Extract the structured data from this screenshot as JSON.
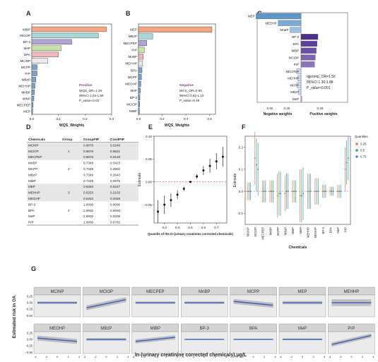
{
  "panel_labels": [
    "A",
    "B",
    "C",
    "D",
    "E",
    "F",
    "G"
  ],
  "chart_data": [
    {
      "panel": "A",
      "type": "bar",
      "orientation": "horizontal",
      "categories": [
        "MiBP",
        "MCiOP",
        "BP-3",
        "MeP",
        "BPA",
        "MCiNP",
        "MCPP",
        "PrP",
        "MBzP",
        "MEHHP",
        "MnBP",
        "MiNP",
        "MECPEP",
        "MEP"
      ],
      "values": [
        0.28,
        0.25,
        0.15,
        0.11,
        0.1,
        0.06,
        0.02,
        0.02,
        0.015,
        0.012,
        0.01,
        0.008,
        0.005,
        0.003
      ],
      "colors": [
        "#f4a582",
        "#a8d8d8",
        "#b2a3d6",
        "#c9e2a3",
        "#f2b8b8",
        "#e8e8e8",
        "#7aa0cc",
        "#7aa0cc",
        "#7aa0cc",
        "#7aa0cc",
        "#7aa0cc",
        "#7aa0cc",
        "#7aa0cc",
        "#7aa0cc"
      ],
      "xlim": [
        0,
        0.3
      ],
      "xticks": [
        "0.0",
        "0.1",
        "0.2",
        "0.3"
      ],
      "xlabel": "WQS_Weights",
      "annotation": {
        "title": "Positive",
        "lines": [
          "WQS_OR=1.29",
          "95%CI 1.04-1.59",
          "P_value=0.03"
        ]
      }
    },
    {
      "panel": "B",
      "type": "bar",
      "orientation": "horizontal",
      "categories": [
        "MEP",
        "MBzP",
        "MECPEP",
        "PrP",
        "MnBP",
        "MEHHP",
        "BPA",
        "MCPP",
        "MEOHP",
        "MeP",
        "BP-3",
        "MCiOP",
        "MiBP"
      ],
      "values": [
        0.62,
        0.12,
        0.07,
        0.05,
        0.04,
        0.035,
        0.03,
        0.025,
        0.02,
        0.015,
        0.012,
        0.01,
        0.008
      ],
      "colors": [
        "#f4a582",
        "#a8d8d8",
        "#b2a3d6",
        "#c9e2a3",
        "#f2b8b8",
        "#e8e8e8",
        "#7aa0cc",
        "#7aa0cc",
        "#7aa0cc",
        "#7aa0cc",
        "#7aa0cc",
        "#7aa0cc",
        "#7aa0cc"
      ],
      "xlim": [
        0,
        0.65
      ],
      "xticks": [
        "0.0",
        "0.2",
        "0.4",
        "0.6"
      ],
      "xlabel": "WQS_Weights",
      "annotation": {
        "title": "Negative",
        "lines": [
          "WCS_OR=0.95",
          "95%CI 0.82-1.10",
          "P_value=0.49"
        ]
      }
    },
    {
      "panel": "C",
      "type": "bar",
      "orientation": "horizontal-diverging",
      "categories": [
        "MEP",
        "MEOHP",
        "MnBP",
        "BP-3",
        "BPA",
        "MiBP",
        "MCiOP",
        "PrP",
        "MECPEP",
        "MEHHP",
        "MCPP",
        "MBzP",
        "MeP"
      ],
      "values": [
        -0.53,
        -0.27,
        -0.13,
        0.2,
        0.19,
        0.18,
        0.17,
        0.16,
        -0.05,
        -0.04,
        -0.05,
        -0.03,
        0.01
      ],
      "xticks_neg": [
        "0.50",
        "0.25"
      ],
      "xticks_pos": [
        "0.25"
      ],
      "xlabel_neg": "Negative weights",
      "xlabel_pos": "Positive weights",
      "annotation": [
        "qgcomp_OR=1.56",
        "95%CI 1.30-1.88",
        "P_value<0.001"
      ]
    },
    {
      "panel": "D",
      "type": "table",
      "columns": [
        "Chemicals",
        "Group",
        "GroupPIP",
        "CondPIP"
      ],
      "rows": [
        [
          "MCiNP",
          "",
          "0.9876",
          "0.0249"
        ],
        [
          "MCiOP",
          "1",
          "0.9876",
          "0.9621"
        ],
        [
          "MECPEP",
          "",
          "0.9876",
          "0.0129"
        ],
        [
          "MnBP",
          "",
          "0.7349",
          "0.3423"
        ],
        [
          "MCPP",
          "2",
          "0.7349",
          "0.2502"
        ],
        [
          "MBzP",
          "",
          "0.7349",
          "0.2643"
        ],
        [
          "MiBP",
          "",
          "0.7349",
          "0.0875"
        ],
        [
          "MEP",
          "",
          "0.6253",
          "0.5247"
        ],
        [
          "MEHHP",
          "3",
          "0.6253",
          "0.2103"
        ],
        [
          "MEOHP",
          "",
          "0.6253",
          "0.2049"
        ],
        [
          "BP-3",
          "",
          "1.0000",
          "0.0000"
        ],
        [
          "BPA",
          "4",
          "1.0000",
          "0.0000"
        ],
        [
          "MeP",
          "",
          "1.0000",
          "0.0208"
        ],
        [
          "PrP",
          "",
          "1.0000",
          "0.9792"
        ]
      ],
      "shaded_groups": [
        1,
        3
      ]
    },
    {
      "panel": "E",
      "type": "scatter",
      "x": [
        0.25,
        0.3,
        0.35,
        0.4,
        0.45,
        0.5,
        0.55,
        0.6,
        0.65,
        0.7,
        0.75
      ],
      "y": [
        -0.065,
        -0.05,
        -0.04,
        -0.028,
        -0.015,
        0,
        0.012,
        0.025,
        0.035,
        0.045,
        0.055
      ],
      "yerr": [
        0.025,
        0.02,
        0.015,
        0.01,
        0.005,
        0,
        0.005,
        0.01,
        0.015,
        0.018,
        0.022
      ],
      "xticks": [
        "0.3",
        "0.4",
        "0.5",
        "0.6",
        "0.7"
      ],
      "yticks": [
        "0.10",
        "0.05",
        "0.00",
        "-0.05"
      ],
      "ylim": [
        -0.09,
        0.1
      ],
      "xlabel": "Quantile of the ln-(urinary creatinine corrected chemicals)",
      "ylabel": "Estimate"
    },
    {
      "panel": "F",
      "type": "scatter",
      "categories": [
        "MCiNP",
        "MCiOP",
        "MECPEP",
        "MnBP",
        "MCPP",
        "MBzP",
        "MiBP",
        "MEP",
        "MEHHP",
        "MEOHP",
        "BP-3",
        "BPA",
        "MeP",
        "PrP"
      ],
      "series": [
        {
          "name": "0.25",
          "color": "#e8745a",
          "values": [
            0.0,
            0.15,
            0.0,
            0.0,
            -0.02,
            -0.01,
            0.0,
            -0.02,
            0.0,
            0.0,
            0.0,
            0.0,
            0.0,
            0.1
          ]
        },
        {
          "name": "0.5",
          "color": "#3aa55a",
          "values": [
            0.0,
            0.12,
            0.0,
            0.0,
            -0.01,
            0.0,
            0.0,
            -0.02,
            0.0,
            0.0,
            0.0,
            0.0,
            0.0,
            0.13
          ]
        },
        {
          "name": "0.75",
          "color": "#4a86d9",
          "values": [
            0.0,
            0.1,
            0.0,
            0.0,
            -0.01,
            0.0,
            0.0,
            -0.01,
            0.0,
            0.0,
            0.0,
            0.0,
            0.0,
            0.15
          ]
        }
      ],
      "yerr": [
        0.04,
        0.12,
        0.05,
        0.05,
        0.1,
        0.08,
        0.05,
        0.12,
        0.08,
        0.06,
        0.03,
        0.02,
        0.03,
        0.1
      ],
      "ylim": [
        -0.15,
        0.25
      ],
      "yticks": [
        "0.2",
        "0.1",
        "0.0",
        "-0.1"
      ],
      "xlabel": "Chemicals",
      "ylabel": "Estimate",
      "legend_title": "Quantiles"
    },
    {
      "panel": "G",
      "type": "line",
      "facets": [
        {
          "name": "MCiNP",
          "y0": 0.0,
          "y1": 0.0,
          "band": 0.03
        },
        {
          "name": "MCiOP",
          "y0": -0.2,
          "y1": 0.12,
          "band": 0.06
        },
        {
          "name": "MECPEP",
          "y0": 0.0,
          "y1": 0.0,
          "band": 0.03
        },
        {
          "name": "MnBP",
          "y0": 0.0,
          "y1": 0.0,
          "band": 0.03
        },
        {
          "name": "MCPP",
          "y0": 0.05,
          "y1": -0.1,
          "band": 0.06
        },
        {
          "name": "MEP",
          "y0": 0.0,
          "y1": 0.0,
          "band": 0.04
        },
        {
          "name": "MEHHP",
          "y0": 0.0,
          "y1": 0.0,
          "band": 0.08
        },
        {
          "name": "MEOHP",
          "y0": 0.05,
          "y1": -0.08,
          "band": 0.06
        },
        {
          "name": "MBzP",
          "y0": 0.0,
          "y1": 0.0,
          "band": 0.03
        },
        {
          "name": "MiBP",
          "y0": -0.08,
          "y1": 0.08,
          "band": 0.05
        },
        {
          "name": "BP-3",
          "y0": 0.0,
          "y1": 0.0,
          "band": 0.01
        },
        {
          "name": "BPA",
          "y0": 0.0,
          "y1": 0.0,
          "band": 0.01
        },
        {
          "name": "MeP",
          "y0": 0.0,
          "y1": 0.0,
          "band": 0.02
        },
        {
          "name": "PrP",
          "y0": -0.2,
          "y1": 0.15,
          "band": 0.05
        }
      ],
      "xticks": [
        "-4",
        "-2",
        "0",
        "2",
        "4"
      ],
      "yticks": [
        "0.25",
        "0.00",
        "-0.25",
        "-0.50"
      ],
      "ylim": [
        -0.55,
        0.3
      ],
      "xlabel": "ln-(urinary creatinine corrected chemicals),μg/L",
      "ylabel": "Estimated risk in OA"
    }
  ]
}
